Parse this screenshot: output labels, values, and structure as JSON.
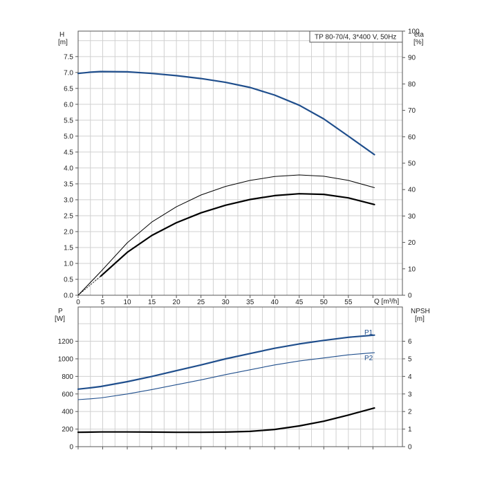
{
  "colors": {
    "blue": "#1f4e8c",
    "black": "#000000",
    "grid": "#d0d0d0",
    "frame": "#555555"
  },
  "chart_data": [
    {
      "type": "line",
      "title": "TP 80-70/4, 3*400 V, 50Hz",
      "xlabel": "Q [m³/h]",
      "ylabel_left": {
        "name": "H",
        "unit": "[m]"
      },
      "ylabel_right": {
        "name": "eta",
        "unit": "[%]"
      },
      "xlim": [
        0,
        66
      ],
      "ylim_left": [
        0,
        8.3
      ],
      "ylim_right": [
        0,
        100
      ],
      "x_ticks": [
        "0",
        "5",
        "10",
        "15",
        "20",
        "25",
        "30",
        "35",
        "40",
        "45",
        "50",
        "55"
      ],
      "left_ticks": [
        "0.0",
        "0.5",
        "1.0",
        "1.5",
        "2.0",
        "2.5",
        "3.0",
        "3.5",
        "4.0",
        "4.5",
        "5.0",
        "5.5",
        "6.0",
        "6.5",
        "7.0",
        "7.5"
      ],
      "right_ticks": [
        "0",
        "10",
        "20",
        "30",
        "40",
        "50",
        "60",
        "70",
        "80",
        "90",
        "100"
      ],
      "grid": true,
      "series": [
        {
          "axis": "left",
          "style": "blue-thick",
          "x": [
            0,
            2.5,
            4.6,
            10,
            15,
            20,
            25,
            30,
            35,
            40,
            45,
            50,
            55,
            60.3
          ],
          "y": [
            6.97,
            7.01,
            7.03,
            7.02,
            6.97,
            6.9,
            6.81,
            6.69,
            6.53,
            6.29,
            5.97,
            5.54,
            5.0,
            4.42
          ]
        },
        {
          "axis": "left",
          "style": "black-thin",
          "x": [
            0,
            4.6,
            10,
            15,
            20,
            25,
            30,
            35,
            40,
            45,
            50,
            55,
            60.3
          ],
          "y": [
            0,
            0.74,
            1.65,
            2.3,
            2.78,
            3.15,
            3.42,
            3.61,
            3.73,
            3.78,
            3.74,
            3.61,
            3.38
          ]
        },
        {
          "axis": "left",
          "style": "black-dashed",
          "x": [
            0,
            2.3,
            4.6
          ],
          "y": [
            0,
            0.37,
            0.74
          ]
        },
        {
          "axis": "left",
          "style": "black-thick",
          "x": [
            4.6,
            10,
            15,
            20,
            25,
            30,
            35,
            40,
            45,
            50,
            55,
            60.3
          ],
          "y": [
            0.6,
            1.35,
            1.88,
            2.28,
            2.59,
            2.83,
            3.01,
            3.13,
            3.19,
            3.17,
            3.06,
            2.85
          ]
        },
        {
          "axis": "left",
          "style": "black-dashed",
          "x": [
            0,
            2.3,
            4.6
          ],
          "y": [
            0,
            0.3,
            0.6
          ]
        }
      ]
    },
    {
      "type": "line",
      "ylabel_left": {
        "name": "P",
        "unit": "[W]"
      },
      "ylabel_right": {
        "name": "NPSH",
        "unit": "[m]"
      },
      "xlim": [
        0,
        66
      ],
      "ylim_left": [
        0,
        1590
      ],
      "ylim_right": [
        0,
        7.95
      ],
      "left_ticks": [
        "0",
        "200",
        "400",
        "600",
        "800",
        "1000",
        "1200"
      ],
      "right_ticks": [
        "0",
        "1",
        "2",
        "3",
        "4",
        "5",
        "6"
      ],
      "grid": true,
      "series": [
        {
          "name": "P1",
          "axis": "left",
          "style": "blue-thick",
          "x": [
            0,
            2.5,
            4.6,
            10,
            15,
            20,
            25,
            30,
            35,
            40,
            45,
            50,
            55,
            60.3
          ],
          "y": [
            655,
            670,
            685,
            740,
            800,
            865,
            930,
            1000,
            1060,
            1120,
            1170,
            1210,
            1245,
            1270
          ]
        },
        {
          "name": "P2",
          "axis": "left",
          "style": "blue-thin",
          "x": [
            0,
            2.5,
            4.6,
            10,
            15,
            20,
            25,
            30,
            35,
            40,
            45,
            50,
            55,
            60.3
          ],
          "y": [
            535,
            545,
            555,
            600,
            650,
            705,
            760,
            820,
            875,
            930,
            975,
            1010,
            1045,
            1070
          ]
        },
        {
          "axis": "right",
          "style": "black-thick",
          "x": [
            0,
            4.6,
            10,
            15,
            20,
            25,
            30,
            35,
            40,
            45,
            50,
            55,
            60.3
          ],
          "y": [
            0.82,
            0.84,
            0.84,
            0.83,
            0.82,
            0.82,
            0.83,
            0.87,
            0.98,
            1.18,
            1.45,
            1.8,
            2.2
          ]
        }
      ]
    }
  ]
}
